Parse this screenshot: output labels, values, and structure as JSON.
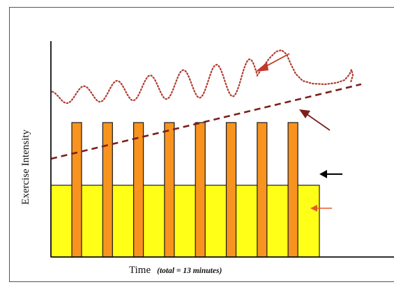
{
  "diagram": {
    "y_axis_label": "Exercise Intensity",
    "x_axis_label": "Time",
    "x_axis_note": "(total = 13 minutes)",
    "interval_count": 8,
    "colors": {
      "steady_block": "#ffff17",
      "interval_bars": "#f7931e",
      "bar_outline": "#1a1a1a",
      "wave_line": "#b03a2e",
      "trend_line": "#7b1f1c",
      "arrow_wave": "#c0392b",
      "arrow_trend": "#7b1f1c",
      "arrow_black": "#000000",
      "arrow_orange": "#e8582a"
    },
    "icons": {
      "wave_arrow": "arrow-pointing-left-icon",
      "trend_arrow": "arrow-pointing-left-icon",
      "block_top_arrow": "arrow-pointing-left-icon",
      "block_arrow": "arrow-pointing-left-icon"
    }
  }
}
